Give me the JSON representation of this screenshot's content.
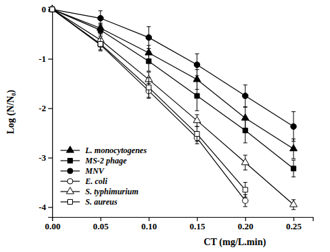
{
  "chart_data": {
    "type": "line",
    "x_label": "CT (mg/L.min)",
    "y_label": "Log (N/N₀)",
    "x": [
      0,
      0.05,
      0.1,
      0.15,
      0.2,
      0.25
    ],
    "xlim": [
      0,
      0.27
    ],
    "xticks": [
      {
        "value": 0,
        "label": "0.00"
      },
      {
        "value": 0.05,
        "label": "0.05"
      },
      {
        "value": 0.1,
        "label": "0.10"
      },
      {
        "value": 0.15,
        "label": "0.15"
      },
      {
        "value": 0.2,
        "label": "0.20"
      },
      {
        "value": 0.25,
        "label": "0.25"
      }
    ],
    "ylim": [
      -4.2,
      0.05
    ],
    "yticks": [
      0,
      -1,
      -2,
      -3,
      -4
    ],
    "legend": "lower left",
    "series": [
      {
        "name": "L. monocytogenes",
        "color": "#000000",
        "marker": "triangle",
        "line_style": "solid",
        "values": [
          0,
          -0.38,
          -0.88,
          -1.42,
          -2.2,
          -2.82
        ],
        "errors": [
          null,
          0.1,
          0.15,
          0.2,
          0.22,
          0.2
        ]
      },
      {
        "name": "MS-2 phage",
        "color": "#000000",
        "marker": "square",
        "line_style": "solid",
        "values": [
          0,
          -0.42,
          -1.05,
          -1.75,
          -2.45,
          -3.22
        ],
        "errors": [
          null,
          0.12,
          0.2,
          0.3,
          0.25,
          0.17
        ]
      },
      {
        "name": "MNV",
        "color": "#000000",
        "marker": "circle",
        "line_style": "solid",
        "values": [
          0,
          -0.18,
          -0.57,
          -1.12,
          -1.75,
          -2.37
        ],
        "errors": [
          null,
          0.15,
          0.22,
          0.22,
          0.22,
          0.3
        ]
      },
      {
        "name": "E. coli",
        "color": "#000000",
        "marker": "circle-open",
        "line_style": "solid",
        "values": [
          0,
          -0.72,
          -1.65,
          -2.6,
          -3.87,
          null
        ],
        "errors": [
          null,
          0.12,
          0.15,
          0.12,
          0.12,
          null
        ]
      },
      {
        "name": "S. typhimurium",
        "color": "#000000",
        "marker": "triangle-open",
        "line_style": "solid",
        "values": [
          0,
          -0.62,
          -1.42,
          -2.25,
          -3.1,
          -3.95
        ],
        "errors": [
          null,
          0.12,
          0.15,
          0.12,
          0.15,
          0.1
        ]
      },
      {
        "name": "S. aureus",
        "color": "#000000",
        "marker": "square-open",
        "line_style": "solid",
        "values": [
          0,
          -0.7,
          -1.58,
          -2.52,
          -3.65,
          null
        ],
        "errors": [
          null,
          0.12,
          0.2,
          0.15,
          0.15,
          null
        ]
      }
    ]
  }
}
